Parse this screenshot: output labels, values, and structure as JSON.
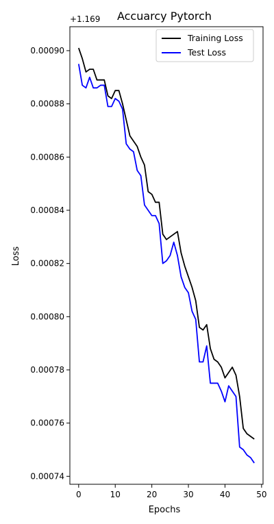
{
  "chart_data": {
    "type": "line",
    "title": "Accuarcy Pytorch",
    "xlabel": "Epochs",
    "ylabel": "Loss",
    "offset_label": "+1.169",
    "xlim": [
      -2.4,
      50.4
    ],
    "ylim": [
      0.000737,
      0.000909
    ],
    "x_ticks": [
      0,
      10,
      20,
      30,
      40,
      50
    ],
    "y_ticks": [
      0.00074,
      0.00076,
      0.00078,
      0.0008,
      0.00082,
      0.00084,
      0.00086,
      0.00088,
      0.0009
    ],
    "y_tick_labels": [
      "0.00074",
      "0.00076",
      "0.00078",
      "0.00080",
      "0.00082",
      "0.00084",
      "0.00086",
      "0.00088",
      "0.00090"
    ],
    "legend_position": "top-right",
    "x": [
      0,
      1,
      2,
      3,
      4,
      5,
      6,
      7,
      8,
      9,
      10,
      11,
      12,
      13,
      14,
      15,
      16,
      17,
      18,
      19,
      20,
      21,
      22,
      23,
      24,
      25,
      26,
      27,
      28,
      29,
      30,
      31,
      32,
      33,
      34,
      35,
      36,
      37,
      38,
      39,
      40,
      41,
      42,
      43,
      44,
      45,
      46,
      47,
      48
    ],
    "series": [
      {
        "name": "Training Loss",
        "color": "#000000",
        "values": [
          0.000901,
          0.000897,
          0.000892,
          0.000893,
          0.000893,
          0.000889,
          0.000889,
          0.000889,
          0.000883,
          0.000882,
          0.000885,
          0.000885,
          0.00088,
          0.000874,
          0.000868,
          0.000866,
          0.000864,
          0.00086,
          0.000857,
          0.000847,
          0.000846,
          0.000843,
          0.000843,
          0.000831,
          0.000829,
          0.00083,
          0.000831,
          0.000832,
          0.000824,
          0.000819,
          0.000815,
          0.000811,
          0.000806,
          0.000796,
          0.000795,
          0.000797,
          0.000788,
          0.000784,
          0.000783,
          0.000781,
          0.000777,
          0.000779,
          0.000781,
          0.000778,
          0.00077,
          0.000758,
          0.000756,
          0.000755,
          0.000754
        ]
      },
      {
        "name": "Test Loss",
        "color": "#0000ff",
        "values": [
          0.000895,
          0.000887,
          0.000886,
          0.00089,
          0.000886,
          0.000886,
          0.000887,
          0.000887,
          0.000879,
          0.000879,
          0.000882,
          0.000881,
          0.000878,
          0.000865,
          0.000863,
          0.000862,
          0.000855,
          0.000853,
          0.000842,
          0.00084,
          0.000838,
          0.000838,
          0.000835,
          0.00082,
          0.000821,
          0.000823,
          0.000828,
          0.000823,
          0.000815,
          0.000811,
          0.000809,
          0.000802,
          0.000799,
          0.000783,
          0.000783,
          0.000789,
          0.000775,
          0.000775,
          0.000775,
          0.000772,
          0.000768,
          0.000774,
          0.000772,
          0.00077,
          0.000751,
          0.00075,
          0.000748,
          0.000747,
          0.000745
        ]
      }
    ]
  }
}
